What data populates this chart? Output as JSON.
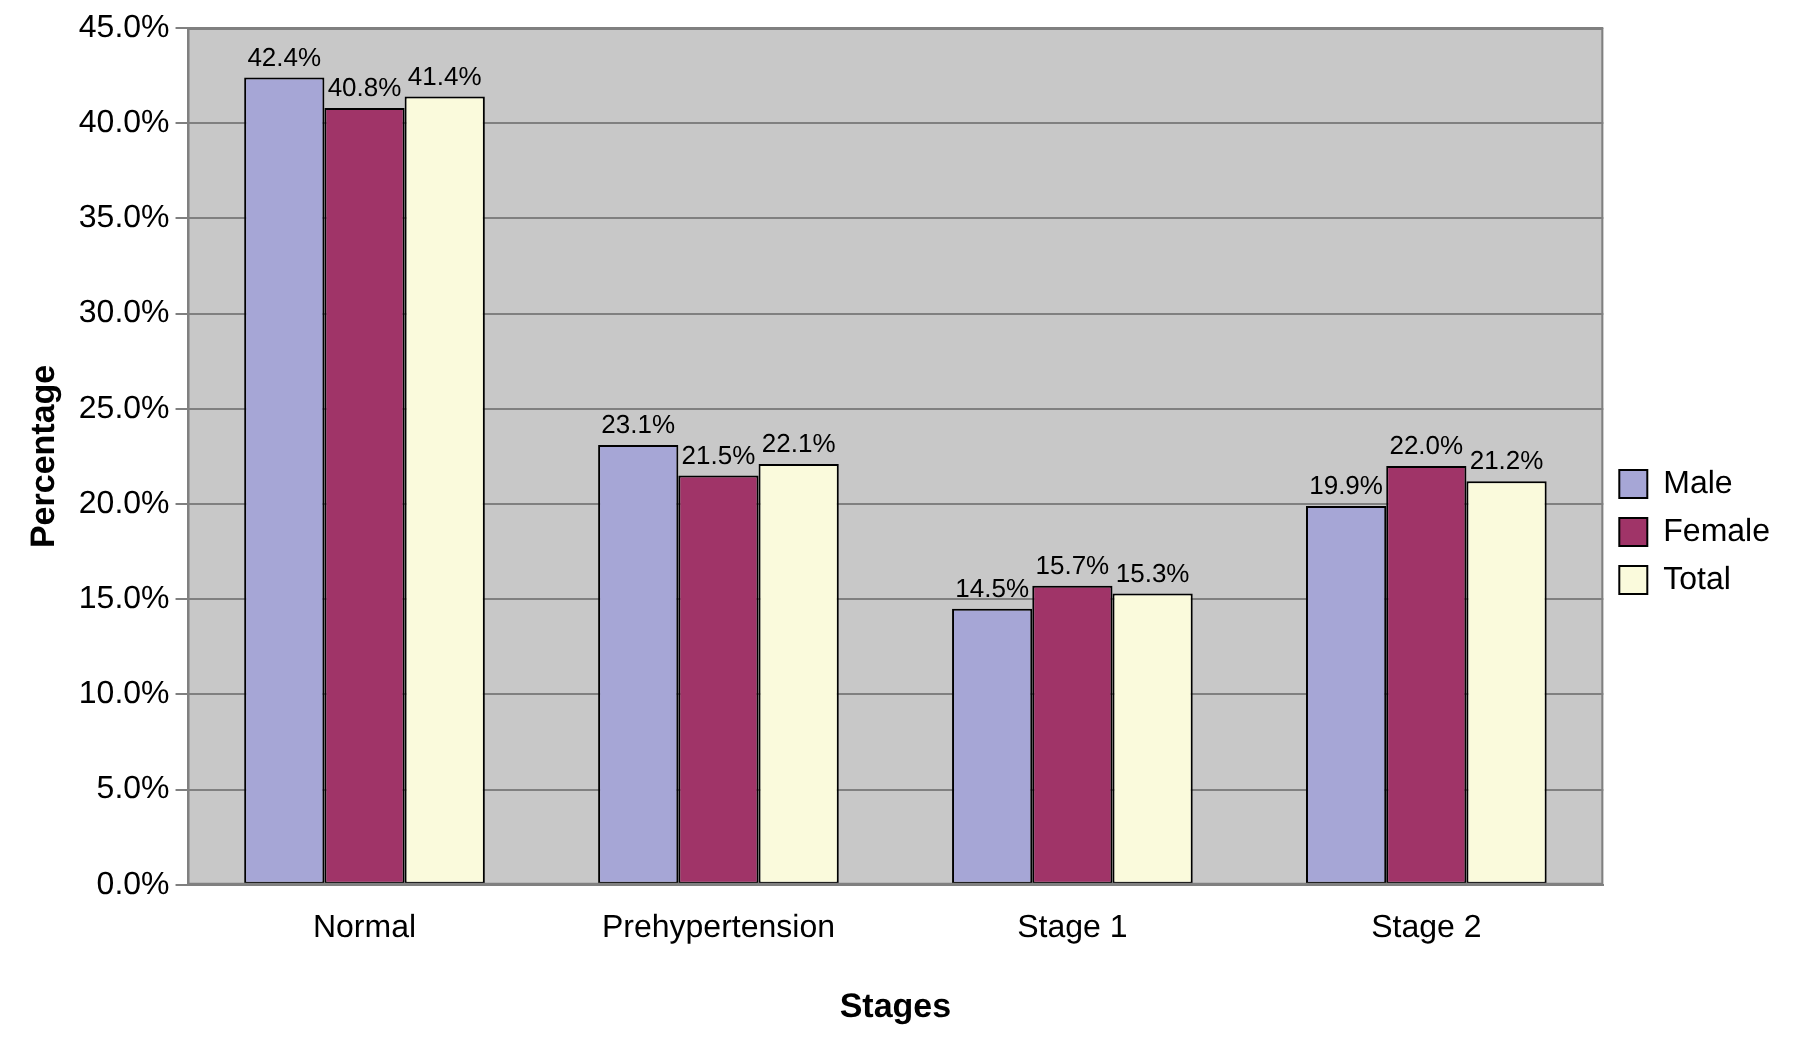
{
  "chart_data": {
    "type": "bar",
    "xlabel": "Stages",
    "ylabel": "Percentage",
    "categories": [
      "Normal",
      "Prehypertension",
      "Stage 1",
      "Stage 2"
    ],
    "series": [
      {
        "name": "Male",
        "color": "#a6a6d6",
        "values": [
          42.4,
          23.1,
          14.5,
          19.9
        ],
        "value_labels": [
          "42.4%",
          "23.1%",
          "14.5%",
          "19.9%"
        ]
      },
      {
        "name": "Female",
        "color": "#a03468",
        "values": [
          40.8,
          21.5,
          15.7,
          22.0
        ],
        "value_labels": [
          "40.8%",
          "21.5%",
          "15.7%",
          "22.0%"
        ]
      },
      {
        "name": "Total",
        "color": "#fafadc",
        "values": [
          41.4,
          22.1,
          15.3,
          21.2
        ],
        "value_labels": [
          "41.4%",
          "22.1%",
          "15.3%",
          "21.2%"
        ]
      }
    ],
    "ylim": [
      0,
      45
    ],
    "yticks": [
      {
        "value": 0,
        "label": "0.0%"
      },
      {
        "value": 5,
        "label": "5.0%"
      },
      {
        "value": 10,
        "label": "10.0%"
      },
      {
        "value": 15,
        "label": "15.0%"
      },
      {
        "value": 20,
        "label": "20.0%"
      },
      {
        "value": 25,
        "label": "25.0%"
      },
      {
        "value": 30,
        "label": "30.0%"
      },
      {
        "value": 35,
        "label": "35.0%"
      },
      {
        "value": 40,
        "label": "40.0%"
      },
      {
        "value": 45,
        "label": "45.0%"
      }
    ],
    "grid": "y",
    "legend": "right"
  }
}
